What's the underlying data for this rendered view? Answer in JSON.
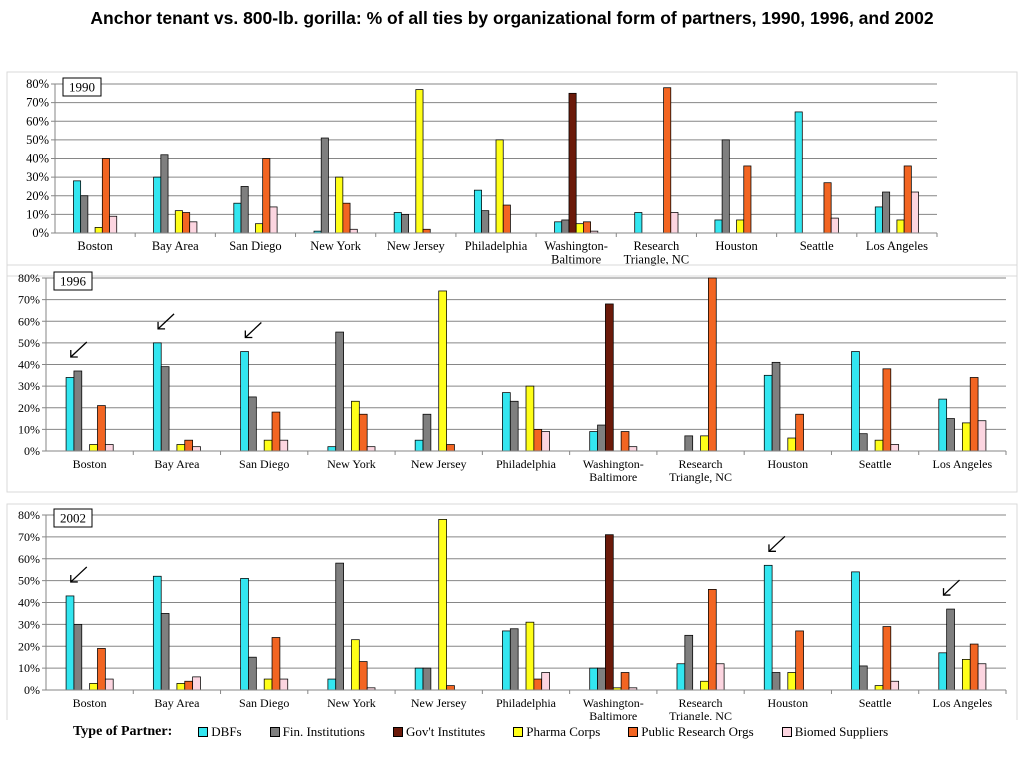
{
  "title": "Anchor tenant vs. 800-lb. gorilla: % of all ties by organizational form of partners, 1990, 1996, and 2002",
  "legend_title": "Type of Partner:",
  "chart_data": [
    {
      "type": "bar",
      "panel_label": "1990",
      "ylim": [
        0,
        80
      ],
      "yticks": [
        "0%",
        "10%",
        "20%",
        "30%",
        "40%",
        "50%",
        "60%",
        "70%",
        "80%"
      ],
      "categories": [
        "Boston",
        "Bay Area",
        "San Diego",
        "New York",
        "New Jersey",
        "Philadelphia",
        "Washington-\nBaltimore",
        "Research\nTriangle, NC",
        "Houston",
        "Seattle",
        "Los Angeles"
      ],
      "series": [
        {
          "name": "DBFs",
          "color": "#33e6f0",
          "values": [
            28,
            30,
            16,
            1,
            11,
            23,
            6,
            11,
            7,
            65,
            14
          ]
        },
        {
          "name": "Fin. Institutions",
          "color": "#7f7f7f",
          "values": [
            20,
            42,
            25,
            51,
            10,
            12,
            7,
            0,
            50,
            0,
            22
          ]
        },
        {
          "name": "Gov't Institutes",
          "color": "#6b1a0a",
          "values": [
            0,
            0,
            0,
            0,
            0,
            0,
            75,
            0,
            0,
            0,
            0
          ]
        },
        {
          "name": "Pharma Corps",
          "color": "#ffff19",
          "values": [
            3,
            12,
            5,
            30,
            77,
            50,
            5,
            0,
            7,
            0,
            7
          ]
        },
        {
          "name": "Public Research Orgs",
          "color": "#f26522",
          "values": [
            40,
            11,
            40,
            16,
            2,
            15,
            6,
            78,
            36,
            27,
            36
          ]
        },
        {
          "name": "Biomed Suppliers",
          "color": "#fcd5e0",
          "values": [
            9,
            6,
            14,
            2,
            0,
            0,
            1,
            11,
            0,
            8,
            22
          ]
        }
      ],
      "arrows": []
    },
    {
      "type": "bar",
      "panel_label": "1996",
      "ylim": [
        0,
        80
      ],
      "yticks": [
        "0%",
        "10%",
        "20%",
        "30%",
        "40%",
        "50%",
        "60%",
        "70%",
        "80%"
      ],
      "categories": [
        "Boston",
        "Bay Area",
        "San Diego",
        "New York",
        "New Jersey",
        "Philadelphia",
        "Washington-\nBaltimore",
        "Research\nTriangle, NC",
        "Houston",
        "Seattle",
        "Los Angeles"
      ],
      "series": [
        {
          "name": "DBFs",
          "color": "#33e6f0",
          "values": [
            34,
            50,
            46,
            2,
            5,
            27,
            9,
            0,
            35,
            46,
            24
          ]
        },
        {
          "name": "Fin. Institutions",
          "color": "#7f7f7f",
          "values": [
            37,
            39,
            25,
            55,
            17,
            23,
            12,
            7,
            41,
            8,
            15
          ]
        },
        {
          "name": "Gov't Institutes",
          "color": "#6b1a0a",
          "values": [
            0,
            0,
            0,
            0,
            0,
            0,
            68,
            0,
            0,
            0,
            0
          ]
        },
        {
          "name": "Pharma Corps",
          "color": "#ffff19",
          "values": [
            3,
            3,
            5,
            23,
            74,
            30,
            0,
            7,
            6,
            5,
            13
          ]
        },
        {
          "name": "Public Research Orgs",
          "color": "#f26522",
          "values": [
            21,
            5,
            18,
            17,
            3,
            10,
            9,
            80,
            17,
            38,
            34
          ]
        },
        {
          "name": "Biomed Suppliers",
          "color": "#fcd5e0",
          "values": [
            3,
            2,
            5,
            2,
            0,
            9,
            2,
            0,
            0,
            3,
            14
          ]
        }
      ],
      "arrows": [
        "Boston",
        "Bay Area",
        "San Diego"
      ]
    },
    {
      "type": "bar",
      "panel_label": "2002",
      "ylim": [
        0,
        80
      ],
      "yticks": [
        "0%",
        "10%",
        "20%",
        "30%",
        "40%",
        "50%",
        "60%",
        "70%",
        "80%"
      ],
      "categories": [
        "Boston",
        "Bay Area",
        "San Diego",
        "New York",
        "New Jersey",
        "Philadelphia",
        "Washington-\nBaltimore",
        "Research\nTriangle, NC",
        "Houston",
        "Seattle",
        "Los Angeles"
      ],
      "series": [
        {
          "name": "DBFs",
          "color": "#33e6f0",
          "values": [
            43,
            52,
            51,
            5,
            10,
            27,
            10,
            12,
            57,
            54,
            17
          ]
        },
        {
          "name": "Fin. Institutions",
          "color": "#7f7f7f",
          "values": [
            30,
            35,
            15,
            58,
            10,
            28,
            10,
            25,
            8,
            11,
            37
          ]
        },
        {
          "name": "Gov't Institutes",
          "color": "#6b1a0a",
          "values": [
            0,
            0,
            0,
            0,
            0,
            0,
            71,
            0,
            0,
            0,
            0
          ]
        },
        {
          "name": "Pharma Corps",
          "color": "#ffff19",
          "values": [
            3,
            3,
            5,
            23,
            78,
            31,
            1,
            4,
            8,
            2,
            14
          ]
        },
        {
          "name": "Public Research Orgs",
          "color": "#f26522",
          "values": [
            19,
            4,
            24,
            13,
            2,
            5,
            8,
            46,
            27,
            29,
            21
          ]
        },
        {
          "name": "Biomed Suppliers",
          "color": "#fcd5e0",
          "values": [
            5,
            6,
            5,
            1,
            0,
            8,
            1,
            12,
            0,
            4,
            12
          ]
        }
      ],
      "arrows": [
        "Boston",
        "Houston",
        "Los Angeles"
      ]
    }
  ]
}
